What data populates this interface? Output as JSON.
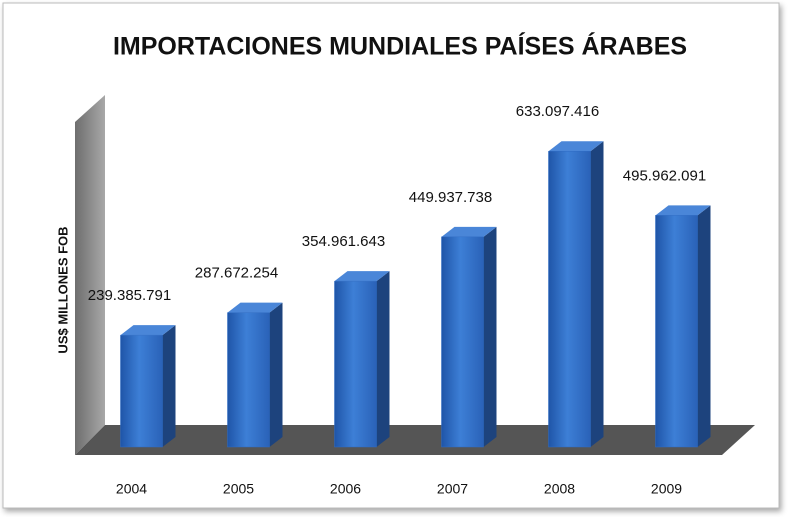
{
  "chart_data": {
    "type": "bar3d",
    "title": "IMPORTACIONES MUNDIALES PAÍSES ÁRABES",
    "y_label": "US$ MILLONES FOB",
    "categories": [
      "2004",
      "2005",
      "2006",
      "2007",
      "2008",
      "2009"
    ],
    "values": [
      239385791,
      287672254,
      354961643,
      449937738,
      633097416,
      495962091
    ],
    "value_labels": [
      "239.385.791",
      "287.672.254",
      "354.961.643",
      "449.937.738",
      "633.097.416",
      "495.962.091"
    ],
    "color": "#2f6cc4",
    "ylim": [
      0,
      700000000
    ]
  }
}
